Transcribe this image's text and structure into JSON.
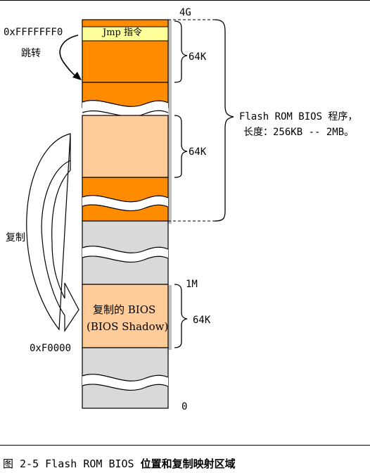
{
  "labels": {
    "top_4g": "4G",
    "reset_addr": "0xFFFFFFF0",
    "jmp_instr": "Jmp 指令",
    "jump": "跳转",
    "seg_64k_1": "64K",
    "seg_64k_2": "64K",
    "seg_64k_3": "64K",
    "flash_line1": "Flash ROM BIOS 程序，",
    "flash_line2": "长度：256KB -- 2MB。",
    "copy": "复制",
    "addr_1m": "1M",
    "shadow_line1": "复制的 BIOS",
    "shadow_line2": "(BIOS Shadow)",
    "addr_f0000": "0xF0000",
    "addr_0": "0"
  },
  "caption": {
    "prefix": "图 2-5 Flash ROM BIOS",
    "bold": "位置和复制映射区域"
  },
  "colors": {
    "orange": "#FF8C00",
    "peach": "#FFCC99",
    "gray": "#D9D9D9",
    "yellow": "#FFFF99",
    "shadow_peach": "#FFCC99"
  }
}
